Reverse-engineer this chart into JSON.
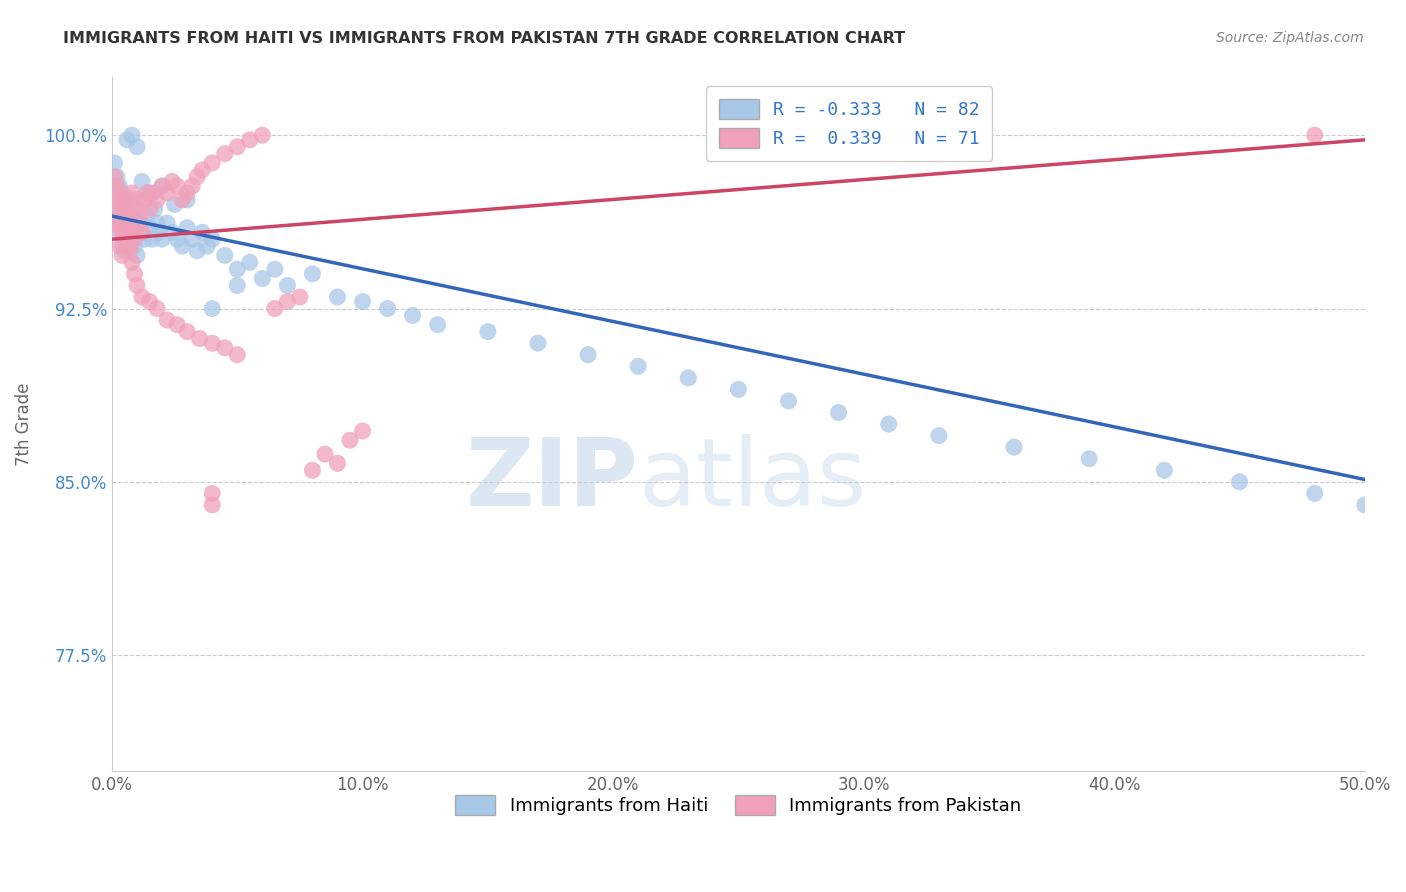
{
  "title": "IMMIGRANTS FROM HAITI VS IMMIGRANTS FROM PAKISTAN 7TH GRADE CORRELATION CHART",
  "source": "Source: ZipAtlas.com",
  "ylabel": "7th Grade",
  "xlim": [
    0.0,
    0.5
  ],
  "ylim": [
    0.725,
    1.025
  ],
  "xtick_labels": [
    "0.0%",
    "10.0%",
    "20.0%",
    "30.0%",
    "40.0%",
    "50.0%"
  ],
  "xtick_vals": [
    0.0,
    0.1,
    0.2,
    0.3,
    0.4,
    0.5
  ],
  "ytick_labels": [
    "77.5%",
    "85.0%",
    "92.5%",
    "100.0%"
  ],
  "ytick_vals": [
    0.775,
    0.85,
    0.925,
    1.0
  ],
  "haiti_color": "#a8c8e8",
  "pakistan_color": "#f0a0b8",
  "haiti_line_color": "#3366bb",
  "pakistan_line_color": "#cc4466",
  "haiti_R": -0.333,
  "haiti_N": 82,
  "pakistan_R": 0.339,
  "pakistan_N": 71,
  "legend_label_haiti": "Immigrants from Haiti",
  "legend_label_pakistan": "Immigrants from Pakistan",
  "watermark": "ZIPatlas",
  "haiti_line_x": [
    0.0,
    0.5
  ],
  "haiti_line_y": [
    0.965,
    0.851
  ],
  "pakistan_line_x": [
    0.0,
    0.5
  ],
  "pakistan_line_y": [
    0.955,
    0.998
  ],
  "haiti_scatter_x": [
    0.001,
    0.001,
    0.002,
    0.002,
    0.002,
    0.003,
    0.003,
    0.003,
    0.004,
    0.004,
    0.004,
    0.005,
    0.005,
    0.005,
    0.006,
    0.006,
    0.007,
    0.007,
    0.008,
    0.008,
    0.009,
    0.009,
    0.01,
    0.01,
    0.011,
    0.012,
    0.013,
    0.014,
    0.015,
    0.016,
    0.017,
    0.018,
    0.019,
    0.02,
    0.022,
    0.024,
    0.026,
    0.028,
    0.03,
    0.032,
    0.034,
    0.036,
    0.038,
    0.04,
    0.045,
    0.05,
    0.055,
    0.06,
    0.065,
    0.07,
    0.08,
    0.09,
    0.1,
    0.11,
    0.12,
    0.13,
    0.15,
    0.17,
    0.19,
    0.21,
    0.23,
    0.25,
    0.27,
    0.29,
    0.31,
    0.33,
    0.36,
    0.39,
    0.42,
    0.45,
    0.48,
    0.5,
    0.006,
    0.008,
    0.01,
    0.012,
    0.015,
    0.02,
    0.025,
    0.03,
    0.04,
    0.05
  ],
  "haiti_scatter_y": [
    0.988,
    0.972,
    0.982,
    0.975,
    0.965,
    0.978,
    0.968,
    0.958,
    0.975,
    0.962,
    0.952,
    0.972,
    0.96,
    0.95,
    0.968,
    0.955,
    0.965,
    0.952,
    0.972,
    0.958,
    0.965,
    0.952,
    0.96,
    0.948,
    0.962,
    0.958,
    0.955,
    0.965,
    0.96,
    0.955,
    0.968,
    0.962,
    0.958,
    0.955,
    0.962,
    0.958,
    0.955,
    0.952,
    0.96,
    0.955,
    0.95,
    0.958,
    0.952,
    0.955,
    0.948,
    0.942,
    0.945,
    0.938,
    0.942,
    0.935,
    0.94,
    0.93,
    0.928,
    0.925,
    0.922,
    0.918,
    0.915,
    0.91,
    0.905,
    0.9,
    0.895,
    0.89,
    0.885,
    0.88,
    0.875,
    0.87,
    0.865,
    0.86,
    0.855,
    0.85,
    0.845,
    0.84,
    0.998,
    1.0,
    0.995,
    0.98,
    0.975,
    0.978,
    0.97,
    0.972,
    0.925,
    0.935
  ],
  "pakistan_scatter_x": [
    0.001,
    0.001,
    0.002,
    0.002,
    0.002,
    0.003,
    0.003,
    0.003,
    0.004,
    0.004,
    0.004,
    0.005,
    0.005,
    0.006,
    0.006,
    0.007,
    0.007,
    0.008,
    0.008,
    0.009,
    0.009,
    0.01,
    0.01,
    0.011,
    0.012,
    0.013,
    0.014,
    0.015,
    0.016,
    0.018,
    0.02,
    0.022,
    0.024,
    0.026,
    0.028,
    0.03,
    0.032,
    0.034,
    0.036,
    0.04,
    0.045,
    0.05,
    0.055,
    0.06,
    0.065,
    0.07,
    0.075,
    0.08,
    0.085,
    0.09,
    0.095,
    0.1,
    0.005,
    0.006,
    0.007,
    0.008,
    0.009,
    0.01,
    0.012,
    0.015,
    0.018,
    0.022,
    0.026,
    0.03,
    0.035,
    0.04,
    0.045,
    0.05,
    0.04,
    0.04,
    0.48
  ],
  "pakistan_scatter_y": [
    0.982,
    0.968,
    0.978,
    0.962,
    0.972,
    0.975,
    0.96,
    0.952,
    0.97,
    0.958,
    0.948,
    0.968,
    0.955,
    0.972,
    0.958,
    0.965,
    0.952,
    0.975,
    0.96,
    0.968,
    0.955,
    0.972,
    0.96,
    0.965,
    0.958,
    0.972,
    0.975,
    0.968,
    0.975,
    0.972,
    0.978,
    0.975,
    0.98,
    0.978,
    0.972,
    0.975,
    0.978,
    0.982,
    0.985,
    0.988,
    0.992,
    0.995,
    0.998,
    1.0,
    0.925,
    0.928,
    0.93,
    0.855,
    0.862,
    0.858,
    0.868,
    0.872,
    0.965,
    0.958,
    0.95,
    0.945,
    0.94,
    0.935,
    0.93,
    0.928,
    0.925,
    0.92,
    0.918,
    0.915,
    0.912,
    0.91,
    0.908,
    0.905,
    0.84,
    0.845,
    1.0
  ]
}
